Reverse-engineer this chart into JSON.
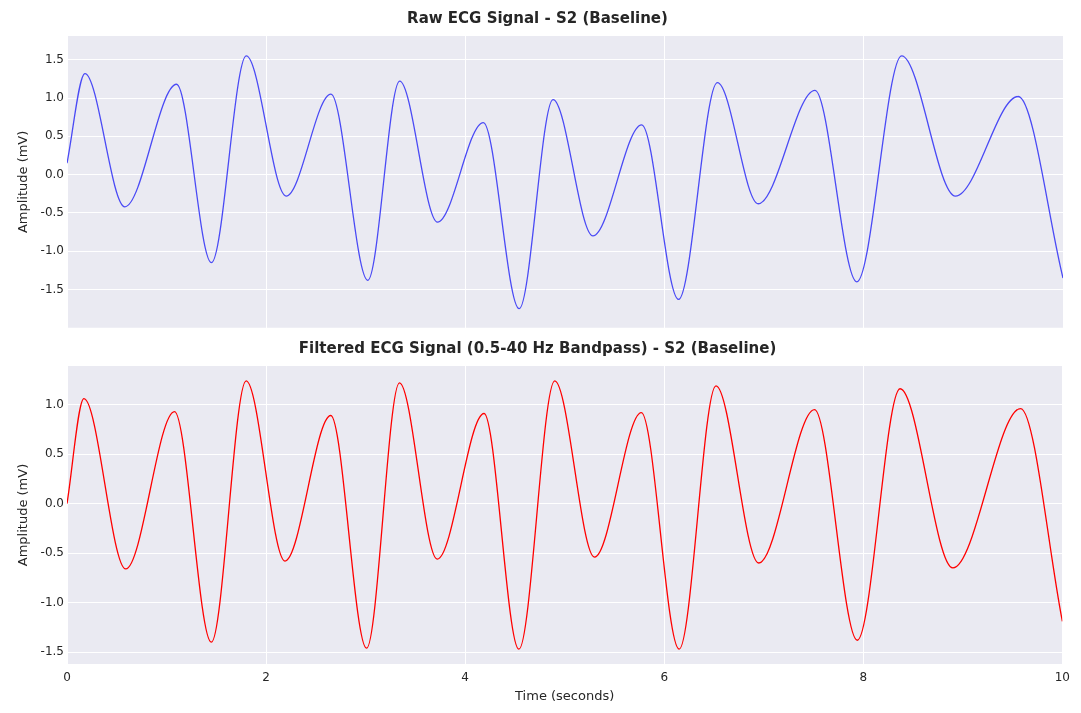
{
  "chart_data": [
    {
      "type": "line",
      "title": "Raw ECG Signal - S2 (Baseline)",
      "ylabel": "Amplitude (mV)",
      "xlim": [
        0,
        10
      ],
      "xticks": [
        0,
        2,
        4,
        6,
        8,
        10
      ],
      "ylim": [
        -2.0,
        1.81
      ],
      "yticks": [
        -1.5,
        {
          "value": -1,
          "label": "-1.0"
        },
        -0.5,
        {
          "value": 0,
          "label": "0.0"
        },
        0.5,
        {
          "value": 1,
          "label": "1.0"
        },
        1.5
      ],
      "tick_labels": "y",
      "grid": true,
      "legend": false,
      "marker": "none",
      "line_style": "solid",
      "series": [
        {
          "color": "#4a4af5",
          "x": [
            0,
            0.18,
            0.58,
            1.1,
            1.45,
            1.8,
            2.2,
            2.65,
            3.02,
            3.34,
            3.72,
            4.18,
            4.54,
            4.88,
            5.28,
            5.77,
            6.14,
            6.53,
            6.94,
            7.51,
            7.93,
            8.38,
            8.92,
            9.55,
            10
          ],
          "values": [
            0.15,
            1.32,
            -0.42,
            1.18,
            -1.15,
            1.55,
            -0.28,
            1.05,
            -1.38,
            1.22,
            -0.62,
            0.68,
            -1.75,
            0.98,
            -0.8,
            0.65,
            -1.63,
            1.2,
            -0.38,
            1.1,
            -1.4,
            1.55,
            -0.28,
            1.02,
            -1.35
          ]
        }
      ]
    },
    {
      "type": "line",
      "title": "Filtered ECG Signal (0.5-40 Hz Bandpass) - S2 (Baseline)",
      "xlabel": "Time (seconds)",
      "ylabel": "Amplitude (mV)",
      "xlim": [
        0,
        10
      ],
      "xticks": [
        0,
        2,
        4,
        6,
        8,
        10
      ],
      "ylim": [
        -1.62,
        1.39
      ],
      "yticks": [
        -1.5,
        {
          "value": -1,
          "label": "-1.0"
        },
        -0.5,
        {
          "value": 0,
          "label": "0.0"
        },
        0.5,
        {
          "value": 1,
          "label": "1.0"
        }
      ],
      "grid": true,
      "legend": false,
      "marker": "none",
      "line_style": "solid",
      "series": [
        {
          "color": "#ff0000",
          "x": [
            0,
            0.17,
            0.59,
            1.08,
            1.45,
            1.8,
            2.19,
            2.65,
            3.01,
            3.34,
            3.72,
            4.19,
            4.54,
            4.9,
            5.3,
            5.77,
            6.15,
            6.52,
            6.95,
            7.51,
            7.94,
            8.37,
            8.9,
            9.58,
            10
          ],
          "values": [
            0.0,
            1.06,
            -0.66,
            0.93,
            -1.4,
            1.24,
            -0.58,
            0.89,
            -1.46,
            1.22,
            -0.56,
            0.91,
            -1.47,
            1.24,
            -0.54,
            0.92,
            -1.47,
            1.19,
            -0.6,
            0.95,
            -1.38,
            1.16,
            -0.65,
            0.96,
            -1.19
          ]
        }
      ]
    }
  ]
}
